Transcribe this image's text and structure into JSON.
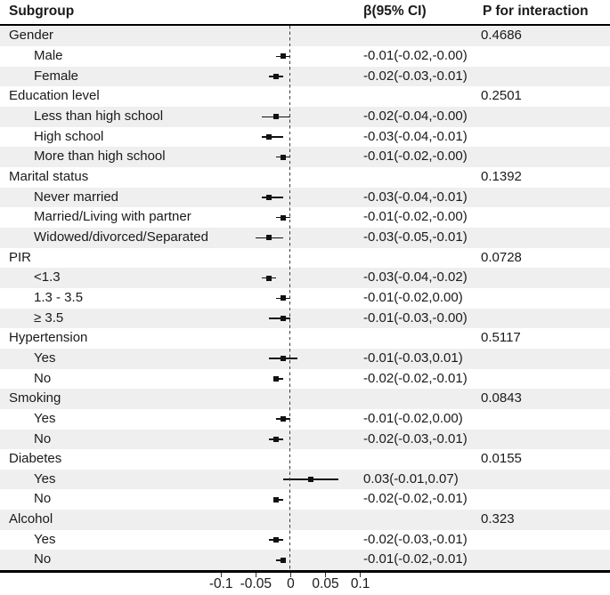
{
  "colors": {
    "stripe": "#efefef",
    "text": "#1a1a1a",
    "rule": "#000000",
    "marker": "#111111"
  },
  "chart_data": {
    "type": "scatter",
    "variant": "forest-plot",
    "title": "",
    "xlabel": "",
    "ylabel": "",
    "xlim": [
      -0.13,
      0.13
    ],
    "x_ticks": [
      -0.1,
      -0.05,
      0,
      0.05,
      0.1
    ],
    "x_tick_labels": [
      "-0.1",
      "-0.05",
      "0",
      "0.05",
      "0.1"
    ],
    "reference_line_x": 0,
    "grid": false,
    "columns": [
      "Subgroup",
      "β(95% CI)",
      "P for interaction"
    ],
    "groups": [
      {
        "name": "Gender",
        "p_interaction": "0.4686",
        "items": [
          {
            "label": "Male",
            "beta": -0.01,
            "ci_low": -0.02,
            "ci_high": 0.0,
            "text": "-0.01(-0.02,-0.00)"
          },
          {
            "label": "Female",
            "beta": -0.02,
            "ci_low": -0.03,
            "ci_high": -0.01,
            "text": "-0.02(-0.03,-0.01)"
          }
        ]
      },
      {
        "name": "Education level",
        "p_interaction": "0.2501",
        "items": [
          {
            "label": "Less than high school",
            "beta": -0.02,
            "ci_low": -0.04,
            "ci_high": 0.0,
            "text": "-0.02(-0.04,-0.00)"
          },
          {
            "label": "High school",
            "beta": -0.03,
            "ci_low": -0.04,
            "ci_high": -0.01,
            "text": "-0.03(-0.04,-0.01)"
          },
          {
            "label": "More than high school",
            "beta": -0.01,
            "ci_low": -0.02,
            "ci_high": 0.0,
            "text": "-0.01(-0.02,-0.00)"
          }
        ]
      },
      {
        "name": "Marital status",
        "p_interaction": "0.1392",
        "items": [
          {
            "label": "Never married",
            "beta": -0.03,
            "ci_low": -0.04,
            "ci_high": -0.01,
            "text": "-0.03(-0.04,-0.01)"
          },
          {
            "label": "Married/Living with partner",
            "beta": -0.01,
            "ci_low": -0.02,
            "ci_high": 0.0,
            "text": "-0.01(-0.02,-0.00)"
          },
          {
            "label": "Widowed/divorced/Separated",
            "beta": -0.03,
            "ci_low": -0.05,
            "ci_high": -0.01,
            "text": "-0.03(-0.05,-0.01)"
          }
        ]
      },
      {
        "name": "PIR",
        "p_interaction": "0.0728",
        "items": [
          {
            "label": "<1.3",
            "beta": -0.03,
            "ci_low": -0.04,
            "ci_high": -0.02,
            "text": "-0.03(-0.04,-0.02)"
          },
          {
            "label": "1.3 - 3.5",
            "beta": -0.01,
            "ci_low": -0.02,
            "ci_high": 0.0,
            "text": "-0.01(-0.02,0.00)"
          },
          {
            "label": "≥ 3.5",
            "beta": -0.01,
            "ci_low": -0.03,
            "ci_high": 0.0,
            "text": "-0.01(-0.03,-0.00)"
          }
        ]
      },
      {
        "name": "Hypertension",
        "p_interaction": "0.5117",
        "items": [
          {
            "label": "Yes",
            "beta": -0.01,
            "ci_low": -0.03,
            "ci_high": 0.01,
            "text": "-0.01(-0.03,0.01)"
          },
          {
            "label": "No",
            "beta": -0.02,
            "ci_low": -0.02,
            "ci_high": -0.01,
            "text": "-0.02(-0.02,-0.01)"
          }
        ]
      },
      {
        "name": "Smoking",
        "p_interaction": "0.0843",
        "items": [
          {
            "label": "Yes",
            "beta": -0.01,
            "ci_low": -0.02,
            "ci_high": 0.0,
            "text": "-0.01(-0.02,0.00)"
          },
          {
            "label": "No",
            "beta": -0.02,
            "ci_low": -0.03,
            "ci_high": -0.01,
            "text": "-0.02(-0.03,-0.01)"
          }
        ]
      },
      {
        "name": "Diabetes",
        "p_interaction": "0.0155",
        "items": [
          {
            "label": "Yes",
            "beta": 0.03,
            "ci_low": -0.01,
            "ci_high": 0.07,
            "text": "0.03(-0.01,0.07)"
          },
          {
            "label": "No",
            "beta": -0.02,
            "ci_low": -0.02,
            "ci_high": -0.01,
            "text": "-0.02(-0.02,-0.01)"
          }
        ]
      },
      {
        "name": "Alcohol",
        "p_interaction": "0.323",
        "items": [
          {
            "label": "Yes",
            "beta": -0.02,
            "ci_low": -0.03,
            "ci_high": -0.01,
            "text": "-0.02(-0.03,-0.01)"
          },
          {
            "label": "No",
            "beta": -0.01,
            "ci_low": -0.02,
            "ci_high": -0.01,
            "text": "-0.01(-0.02,-0.01)"
          }
        ]
      }
    ]
  }
}
